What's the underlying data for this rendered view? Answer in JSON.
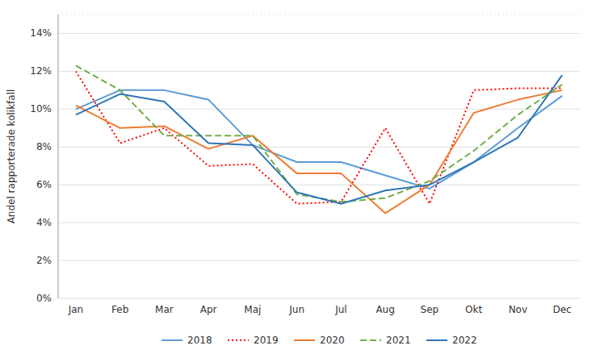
{
  "chart_data": {
    "type": "line",
    "y_label": "Andel rapporterade kolikfall",
    "categories": [
      "Jan",
      "Feb",
      "Mar",
      "Apr",
      "Maj",
      "Jun",
      "Jul",
      "Aug",
      "Sep",
      "Okt",
      "Nov",
      "Dec"
    ],
    "series": [
      {
        "name": "2018",
        "color": "#5B9BD5",
        "line_style": "solid",
        "values": [
          0.1,
          0.11,
          0.11,
          0.105,
          0.081,
          0.072,
          0.072,
          0.065,
          0.058,
          0.072,
          0.09,
          0.107
        ]
      },
      {
        "name": "2019",
        "color": "#FF0000",
        "line_style": "dotted",
        "values": [
          0.12,
          0.082,
          0.09,
          0.07,
          0.071,
          0.05,
          0.051,
          0.09,
          0.05,
          0.11,
          0.111,
          0.111
        ]
      },
      {
        "name": "2020",
        "color": "#ED7D31",
        "line_style": "solid",
        "values": [
          0.102,
          0.09,
          0.091,
          0.079,
          0.086,
          0.066,
          0.066,
          0.045,
          0.06,
          0.098,
          0.105,
          0.11
        ]
      },
      {
        "name": "2021",
        "color": "#70AD47",
        "line_style": "dashed",
        "values": [
          0.123,
          0.11,
          0.086,
          0.086,
          0.086,
          0.055,
          0.051,
          0.053,
          0.062,
          0.078,
          0.097,
          0.113
        ]
      },
      {
        "name": "2022",
        "color": "#2E75B6",
        "line_style": "solid",
        "values": [
          0.097,
          0.108,
          0.104,
          0.082,
          0.081,
          0.056,
          0.05,
          0.057,
          0.06,
          0.072,
          0.085,
          0.118
        ]
      }
    ],
    "ylim": [
      0,
      0.15
    ],
    "yticks": [
      {
        "value": 0.0,
        "label": "0%"
      },
      {
        "value": 0.02,
        "label": "2%"
      },
      {
        "value": 0.04,
        "label": "4%"
      },
      {
        "value": 0.06,
        "label": "6%"
      },
      {
        "value": 0.08,
        "label": "8%"
      },
      {
        "value": 0.1,
        "label": "10%"
      },
      {
        "value": 0.12,
        "label": "12%"
      },
      {
        "value": 0.14,
        "label": "14%"
      }
    ],
    "grid": true,
    "legend": "bottom"
  }
}
